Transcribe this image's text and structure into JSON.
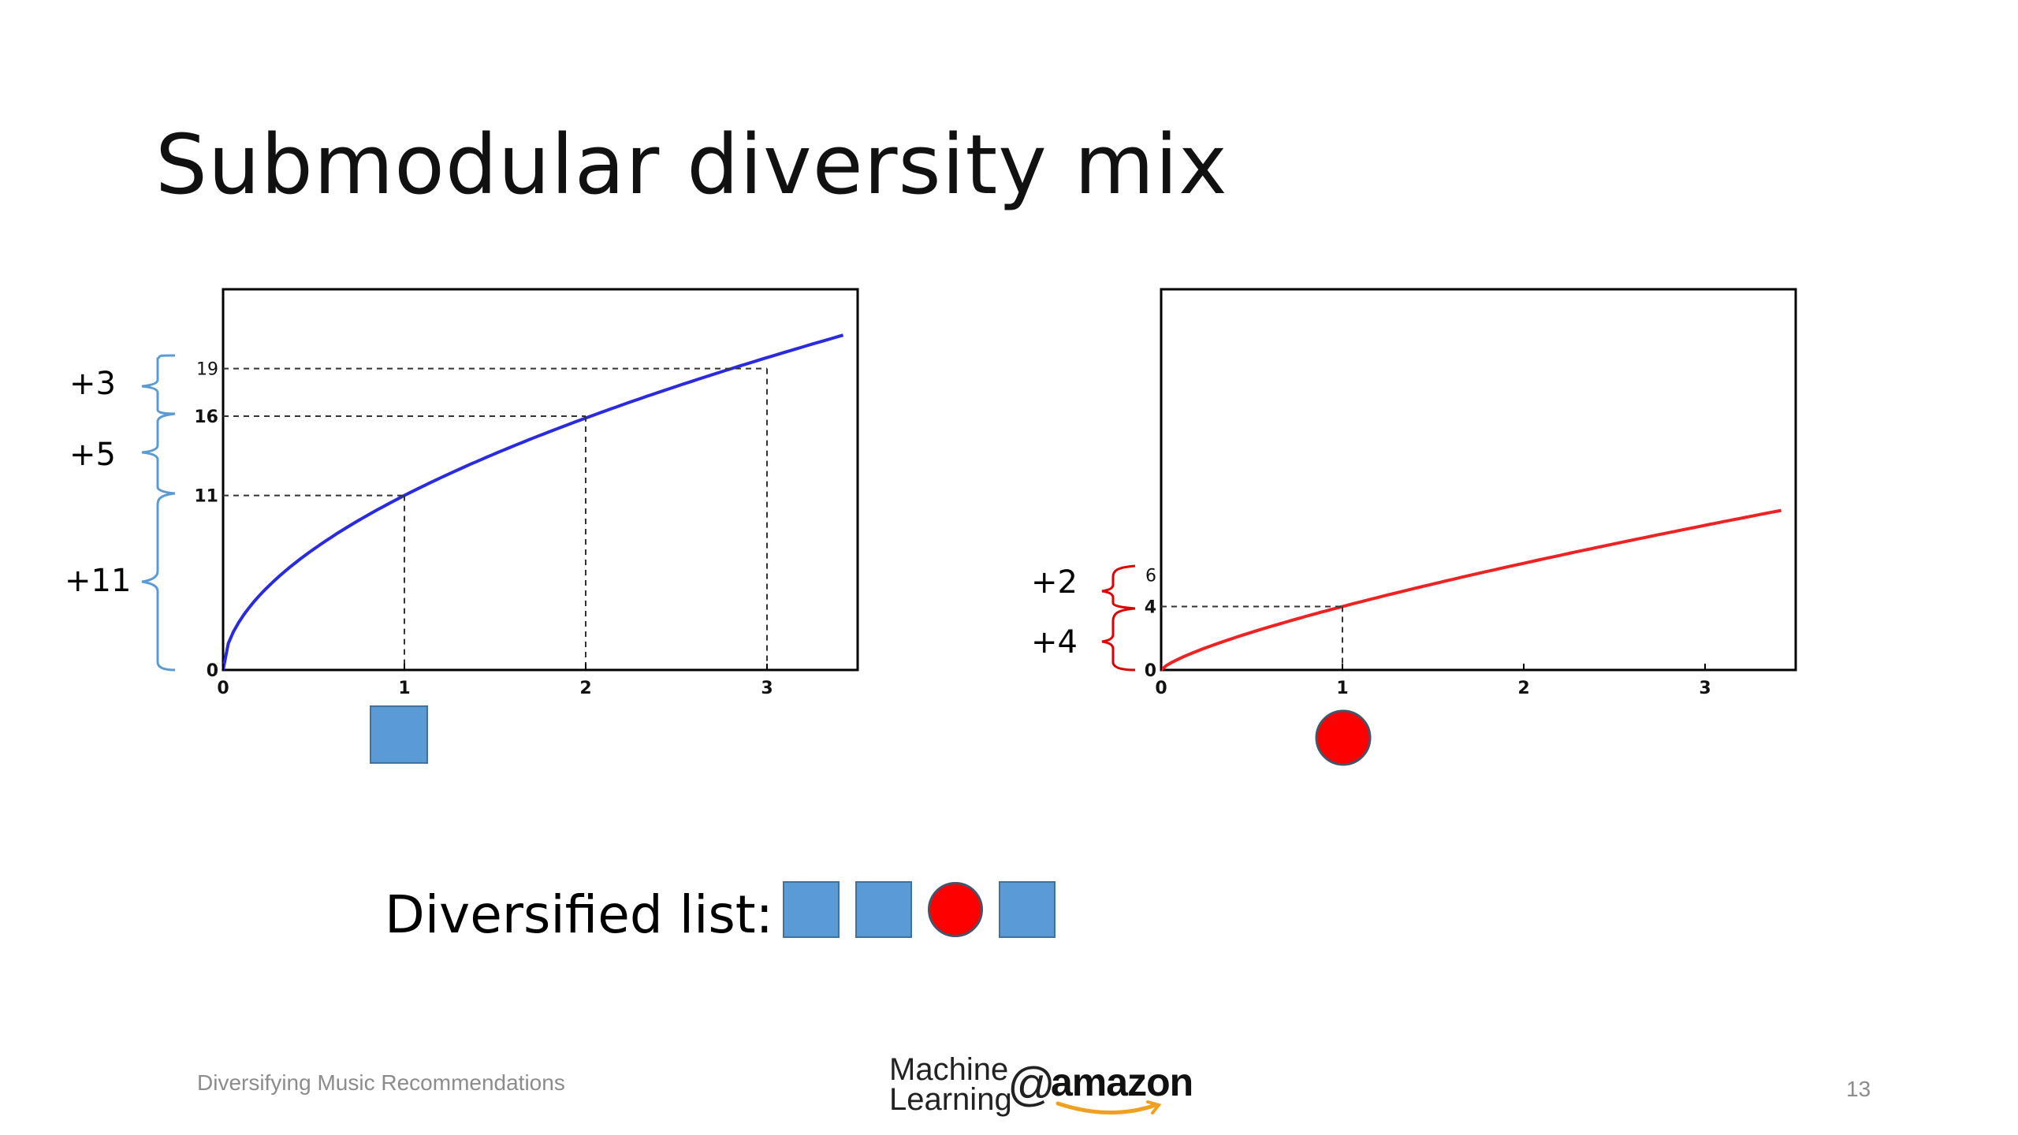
{
  "slide": {
    "title": "Submodular diversity mix",
    "footer_left": "Diversifying Music Recommendations",
    "page_number": "13"
  },
  "logo": {
    "line1": "Machine",
    "line2": "Learning",
    "at": "@",
    "brand": "amazon"
  },
  "colors": {
    "square": "#5b9bd5",
    "circle": "#ff0000",
    "blue_curve": "#2a2ae0",
    "red_curve": "#ee2222",
    "blue_brace": "#5b9bd5",
    "red_brace": "#e00000"
  },
  "list": {
    "label": "Diversified list:",
    "items": [
      "square",
      "square",
      "circle",
      "square"
    ]
  },
  "chart_data": [
    {
      "type": "line",
      "name": "blue-gain-curve",
      "x": [
        0,
        1,
        2,
        3
      ],
      "y": [
        0,
        11,
        16,
        19
      ],
      "xlim": [
        0,
        3.5
      ],
      "ylim": [
        0,
        24
      ],
      "x_ticks": [
        "0",
        "1",
        "2",
        "3"
      ],
      "y_ticks": [
        "0",
        "11",
        "16",
        "19"
      ],
      "gains": [
        "+11",
        "+5",
        "+3"
      ],
      "marker_item": "square"
    },
    {
      "type": "line",
      "name": "red-gain-curve",
      "x": [
        0,
        1
      ],
      "y": [
        0,
        4
      ],
      "xlim": [
        0,
        3.5
      ],
      "ylim": [
        0,
        24
      ],
      "x_ticks": [
        "0",
        "1",
        "2",
        "3"
      ],
      "y_ticks": [
        "0",
        "4",
        "6"
      ],
      "gains": [
        "+4",
        "+2"
      ],
      "marker_item": "circle"
    }
  ]
}
